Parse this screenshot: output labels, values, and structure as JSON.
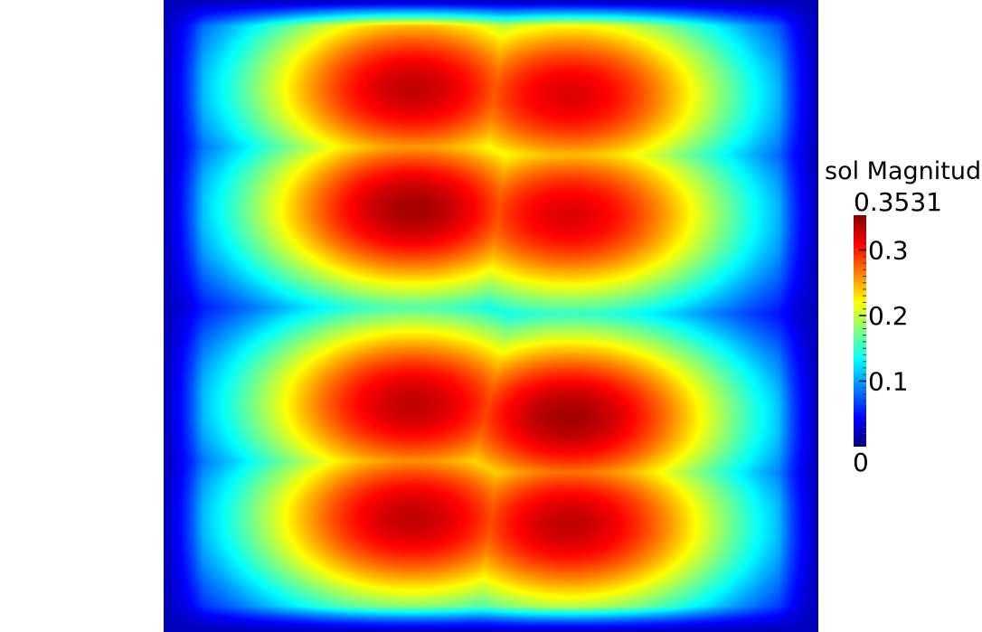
{
  "chart_data": {
    "type": "heatmap",
    "colorbar": {
      "title": "sol Magnitude",
      "title_visible": "sol Magnitud",
      "range": [
        0,
        0.3531
      ],
      "max_label": "0.3531",
      "min_label": "0",
      "ticks": [
        {
          "value": 0.3,
          "label": "0.3"
        },
        {
          "value": 0.2,
          "label": "0.2"
        },
        {
          "value": 0.1,
          "label": "0.1"
        }
      ],
      "colormap": "jet",
      "colormap_stops": [
        "#000080",
        "#0000ff",
        "#0080ff",
        "#00ffff",
        "#80ff80",
        "#ffff00",
        "#ff8000",
        "#ff0000",
        "#800000"
      ]
    },
    "field": {
      "domain_x": [
        0,
        1
      ],
      "domain_y": [
        0,
        1
      ],
      "background_value": 0.02,
      "peaks": [
        {
          "x": 0.38,
          "y": 0.33,
          "value": 0.34
        },
        {
          "x": 0.62,
          "y": 0.34,
          "value": 0.32
        },
        {
          "x": 0.38,
          "y": 0.14,
          "value": 0.33
        },
        {
          "x": 0.62,
          "y": 0.15,
          "value": 0.32
        },
        {
          "x": 0.38,
          "y": 0.82,
          "value": 0.33
        },
        {
          "x": 0.62,
          "y": 0.83,
          "value": 0.33
        },
        {
          "x": 0.38,
          "y": 0.64,
          "value": 0.33
        },
        {
          "x": 0.62,
          "y": 0.66,
          "value": 0.34
        }
      ]
    }
  }
}
